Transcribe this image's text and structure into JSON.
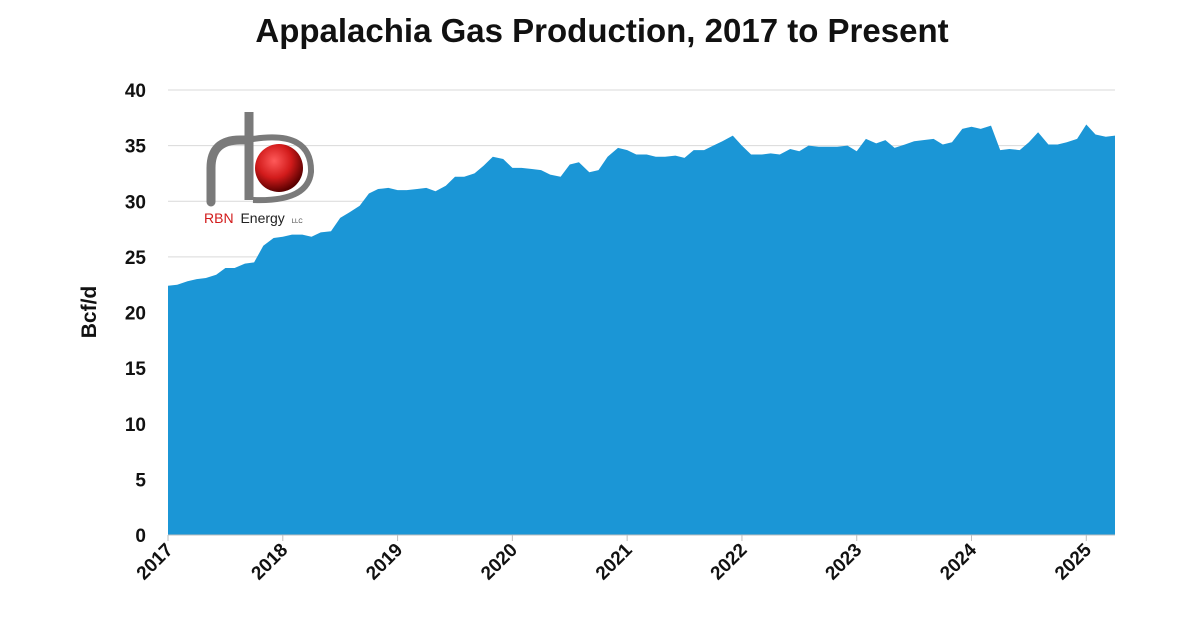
{
  "chart_data": {
    "type": "area",
    "title": "Appalachia Gas Production, 2017 to Present",
    "ylabel": "Bcf/d",
    "xlabel": "",
    "ylim": [
      0,
      40
    ],
    "yticks": [
      0,
      5,
      10,
      15,
      20,
      25,
      30,
      35,
      40
    ],
    "xlim": [
      2017.0,
      2025.25
    ],
    "xticks": [
      "2017",
      "2018",
      "2019",
      "2020",
      "2021",
      "2022",
      "2023",
      "2024",
      "2025"
    ],
    "grid": "horizontal",
    "series": [
      {
        "color": "#1B96D6",
        "points": [
          [
            2017.0,
            22.4
          ],
          [
            2017.08,
            22.5
          ],
          [
            2017.17,
            22.8
          ],
          [
            2017.25,
            23.0
          ],
          [
            2017.33,
            23.1
          ],
          [
            2017.42,
            23.4
          ],
          [
            2017.5,
            24.0
          ],
          [
            2017.58,
            24.0
          ],
          [
            2017.67,
            24.4
          ],
          [
            2017.75,
            24.5
          ],
          [
            2017.83,
            26.0
          ],
          [
            2017.92,
            26.7
          ],
          [
            2018.0,
            26.8
          ],
          [
            2018.08,
            27.0
          ],
          [
            2018.17,
            27.0
          ],
          [
            2018.25,
            26.8
          ],
          [
            2018.33,
            27.2
          ],
          [
            2018.42,
            27.3
          ],
          [
            2018.5,
            28.5
          ],
          [
            2018.58,
            29.0
          ],
          [
            2018.67,
            29.6
          ],
          [
            2018.75,
            30.7
          ],
          [
            2018.83,
            31.1
          ],
          [
            2018.92,
            31.2
          ],
          [
            2019.0,
            31.0
          ],
          [
            2019.08,
            31.0
          ],
          [
            2019.17,
            31.1
          ],
          [
            2019.25,
            31.2
          ],
          [
            2019.33,
            30.9
          ],
          [
            2019.42,
            31.4
          ],
          [
            2019.5,
            32.2
          ],
          [
            2019.58,
            32.2
          ],
          [
            2019.67,
            32.5
          ],
          [
            2019.75,
            33.2
          ],
          [
            2019.83,
            34.0
          ],
          [
            2019.92,
            33.8
          ],
          [
            2020.0,
            33.0
          ],
          [
            2020.08,
            33.0
          ],
          [
            2020.17,
            32.9
          ],
          [
            2020.25,
            32.8
          ],
          [
            2020.33,
            32.4
          ],
          [
            2020.42,
            32.2
          ],
          [
            2020.5,
            33.3
          ],
          [
            2020.58,
            33.5
          ],
          [
            2020.67,
            32.6
          ],
          [
            2020.75,
            32.8
          ],
          [
            2020.83,
            34.0
          ],
          [
            2020.92,
            34.8
          ],
          [
            2021.0,
            34.6
          ],
          [
            2021.08,
            34.2
          ],
          [
            2021.17,
            34.2
          ],
          [
            2021.25,
            34.0
          ],
          [
            2021.33,
            34.0
          ],
          [
            2021.42,
            34.1
          ],
          [
            2021.5,
            33.9
          ],
          [
            2021.58,
            34.6
          ],
          [
            2021.67,
            34.6
          ],
          [
            2021.75,
            35.0
          ],
          [
            2021.83,
            35.4
          ],
          [
            2021.92,
            35.9
          ],
          [
            2022.0,
            35.0
          ],
          [
            2022.08,
            34.2
          ],
          [
            2022.17,
            34.2
          ],
          [
            2022.25,
            34.3
          ],
          [
            2022.33,
            34.2
          ],
          [
            2022.42,
            34.7
          ],
          [
            2022.5,
            34.5
          ],
          [
            2022.58,
            35.0
          ],
          [
            2022.67,
            34.9
          ],
          [
            2022.75,
            34.9
          ],
          [
            2022.83,
            34.9
          ],
          [
            2022.92,
            35.0
          ],
          [
            2023.0,
            34.5
          ],
          [
            2023.08,
            35.6
          ],
          [
            2023.17,
            35.2
          ],
          [
            2023.25,
            35.5
          ],
          [
            2023.33,
            34.8
          ],
          [
            2023.42,
            35.1
          ],
          [
            2023.5,
            35.4
          ],
          [
            2023.58,
            35.5
          ],
          [
            2023.67,
            35.6
          ],
          [
            2023.75,
            35.1
          ],
          [
            2023.83,
            35.3
          ],
          [
            2023.92,
            36.5
          ],
          [
            2024.0,
            36.7
          ],
          [
            2024.08,
            36.5
          ],
          [
            2024.17,
            36.8
          ],
          [
            2024.25,
            34.6
          ],
          [
            2024.33,
            34.7
          ],
          [
            2024.42,
            34.6
          ],
          [
            2024.5,
            35.3
          ],
          [
            2024.58,
            36.2
          ],
          [
            2024.67,
            35.1
          ],
          [
            2024.75,
            35.1
          ],
          [
            2024.83,
            35.3
          ],
          [
            2024.92,
            35.6
          ],
          [
            2025.0,
            36.9
          ],
          [
            2025.08,
            36.0
          ],
          [
            2025.17,
            35.8
          ],
          [
            2025.25,
            35.9
          ]
        ]
      }
    ]
  },
  "logo": {
    "name": "RBN",
    "suffix": "Energy",
    "tag": "LLC",
    "accent": "#D21B1B"
  }
}
